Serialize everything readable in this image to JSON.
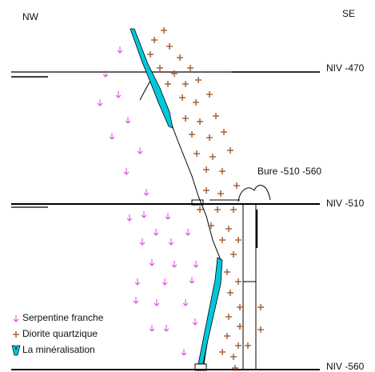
{
  "orientation": {
    "left": "NW",
    "right": "SE"
  },
  "levels": [
    {
      "label": "NIV -470"
    },
    {
      "label": "NIV -510"
    },
    {
      "label": "NIV -560"
    }
  ],
  "shaft_label": "Bure -510 -560",
  "legend": [
    {
      "symbol": "serpentine-icon",
      "label": "Serpentine franche",
      "color": "#e040e0"
    },
    {
      "symbol": "diorite-icon",
      "label": "Diorite quartzique",
      "color": "#a05a2c"
    },
    {
      "symbol": "mineralisation-icon",
      "label": "La minéralisation",
      "color": "#00c8dc"
    }
  ],
  "colors": {
    "serpentine": "#e040e0",
    "diorite": "#a05a2c",
    "mineralisation": "#00c8dc",
    "line": "#000000"
  }
}
